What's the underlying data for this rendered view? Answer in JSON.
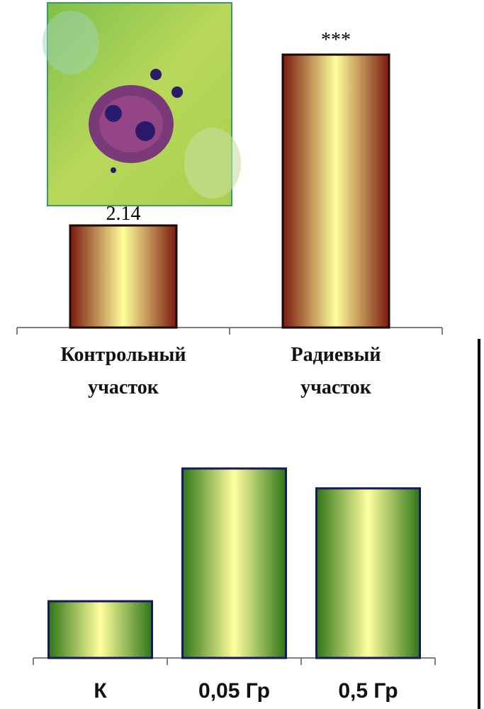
{
  "chart_data": [
    {
      "type": "bar",
      "categories": [
        "Контрольный участок",
        "Радиевый участок"
      ],
      "values": [
        2.14,
        5.72
      ],
      "significance": [
        null,
        "***"
      ],
      "colors": {
        "edge": "#7a1a0c",
        "center": "#ffff9c",
        "border": "#1a0a05"
      }
    },
    {
      "type": "bar",
      "categories": [
        "К",
        "0,05 Гр",
        "0,5 Гр"
      ],
      "values": [
        1,
        3.34,
        2.99
      ],
      "colors": {
        "edge": "#2f7518",
        "center": "#ffff9e",
        "border": "#141a5c"
      }
    }
  ]
}
